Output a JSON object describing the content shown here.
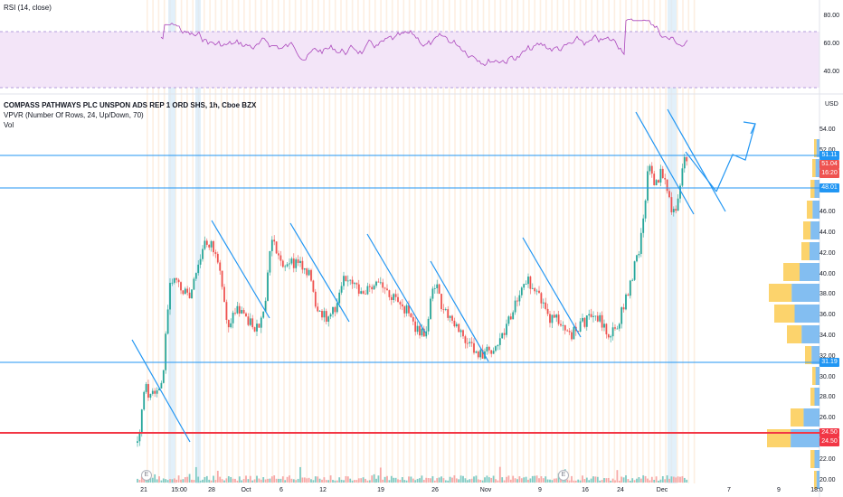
{
  "rsi": {
    "legend": "RSI (14, close)",
    "axis_labels": [
      "80.00",
      "60.00",
      "40.00"
    ]
  },
  "main": {
    "title": "COMPASS PATHWAYS PLC UNSPON ADS REP 1 ORD SHS, 1h, Cboe BZX",
    "vpvr": "VPVR (Number Of Rows, 24, Up/Down, 70)",
    "vol": "Vol",
    "currency": "USD",
    "price_axis": [
      "54.00",
      "52.00",
      "50.00",
      "48.00",
      "46.00",
      "44.00",
      "42.00",
      "40.00",
      "38.00",
      "36.00",
      "34.00",
      "32.00",
      "30.00",
      "28.00",
      "26.00",
      "24.00",
      "22.00",
      "20.00"
    ],
    "badges": {
      "b1": "51.11",
      "b2": "51.04",
      "b3": "16:20",
      "b4": "48.01",
      "b5": "31.19",
      "b6": "24.50",
      "b7": "24.50"
    },
    "time_axis": [
      "21",
      "15:00",
      "28",
      "Oct",
      "6",
      "12",
      "19",
      "26",
      "Nov",
      "9",
      "16",
      "24",
      "Dec",
      "7",
      "9",
      "18:0"
    ],
    "events": [
      "E",
      "E"
    ]
  },
  "colors": {
    "up": "#26a69a",
    "down": "#ef5350",
    "trendline": "#2196f3",
    "support_red": "#f23645",
    "rsi_line": "#9c4fb5",
    "rsi_band": "#f3e5f8"
  }
}
